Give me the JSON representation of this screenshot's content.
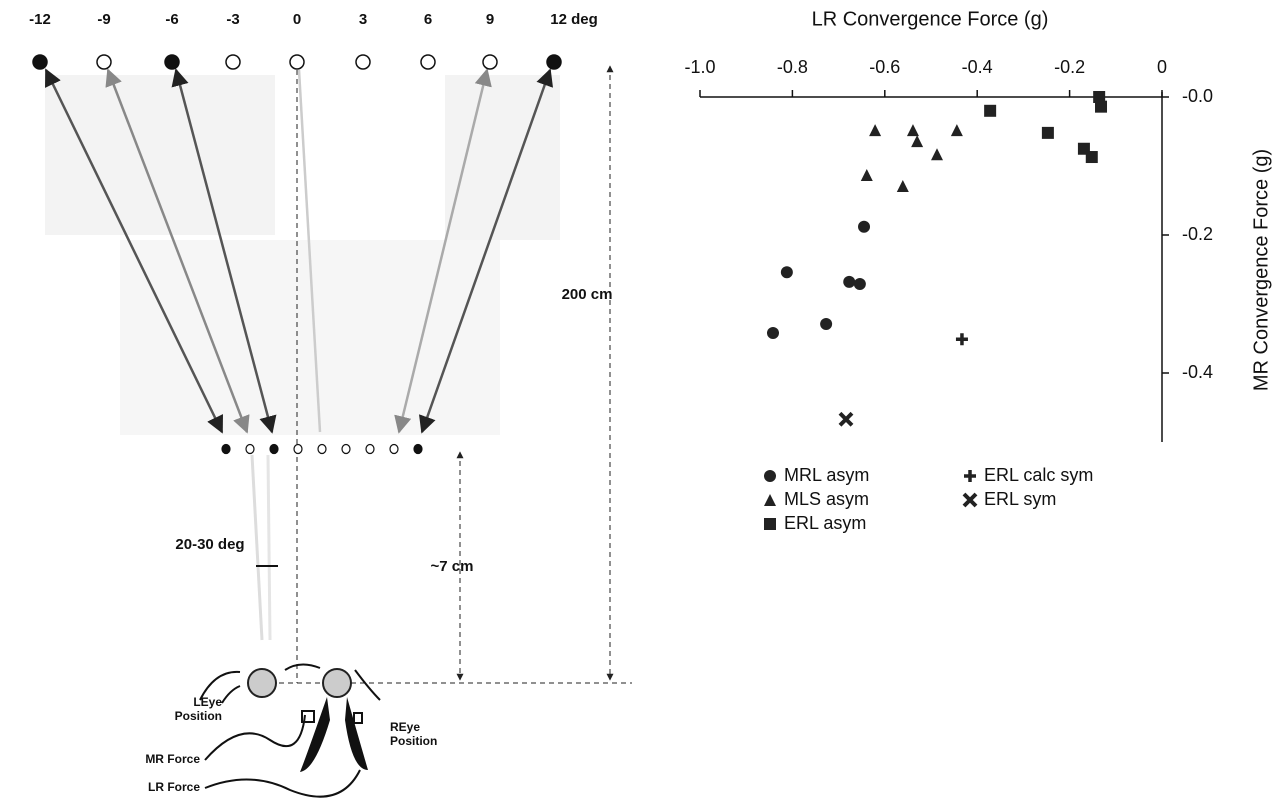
{
  "diagram": {
    "angle_labels": [
      "-12",
      "-9",
      "-6",
      "-3",
      "0",
      "3",
      "6",
      "9",
      "12 deg"
    ],
    "far_distance": "200 cm",
    "near_distance": "~7 cm",
    "range_label": "20-30 deg",
    "left_eye_label": [
      "LEye",
      "Position"
    ],
    "right_eye_label": [
      "REye",
      "Position"
    ],
    "mr_force_label": "MR Force",
    "lr_force_label": "LR Force"
  },
  "chart_data": {
    "type": "scatter",
    "x_label": "LR Convergence Force (g)",
    "y_label": "MR Convergence Force (g)",
    "xlim": [
      -1.0,
      0
    ],
    "ylim": [
      -0.5,
      0
    ],
    "xticks": [
      {
        "value": -1.0,
        "label": "-1.0"
      },
      -0.8,
      -0.6,
      -0.4,
      -0.2,
      0
    ],
    "yticks": [
      {
        "value": 0,
        "label": "-0.0"
      },
      -0.2,
      -0.4
    ],
    "x_axis_position": "top",
    "y_axis_position": "right",
    "series": [
      {
        "name": "MRL asym",
        "marker": "circle",
        "color": "#222",
        "x": [
          -0.842,
          -0.812,
          -0.727,
          -0.677,
          -0.654,
          -0.645
        ],
        "values": [
          -0.342,
          -0.254,
          -0.329,
          -0.268,
          -0.271,
          -0.188
        ]
      },
      {
        "name": "MLS asym",
        "marker": "triangle",
        "color": "#222",
        "x": [
          -0.621,
          -0.539,
          -0.53,
          -0.444,
          -0.487,
          -0.639,
          -0.561
        ],
        "values": [
          -0.048,
          -0.048,
          -0.064,
          -0.048,
          -0.083,
          -0.113,
          -0.129
        ]
      },
      {
        "name": "ERL asym",
        "marker": "square",
        "color": "#222",
        "x": [
          -0.372,
          -0.247,
          -0.136,
          -0.132,
          -0.169,
          -0.152
        ],
        "values": [
          -0.02,
          -0.052,
          0.0,
          -0.014,
          -0.075,
          -0.087
        ]
      },
      {
        "name": "ERL calc sym",
        "marker": "plus",
        "color": "#222",
        "x": [
          -0.433
        ],
        "values": [
          -0.351
        ]
      },
      {
        "name": "ERL sym",
        "marker": "cross",
        "color": "#222",
        "x": [
          -0.684
        ],
        "values": [
          -0.467
        ]
      }
    ]
  }
}
